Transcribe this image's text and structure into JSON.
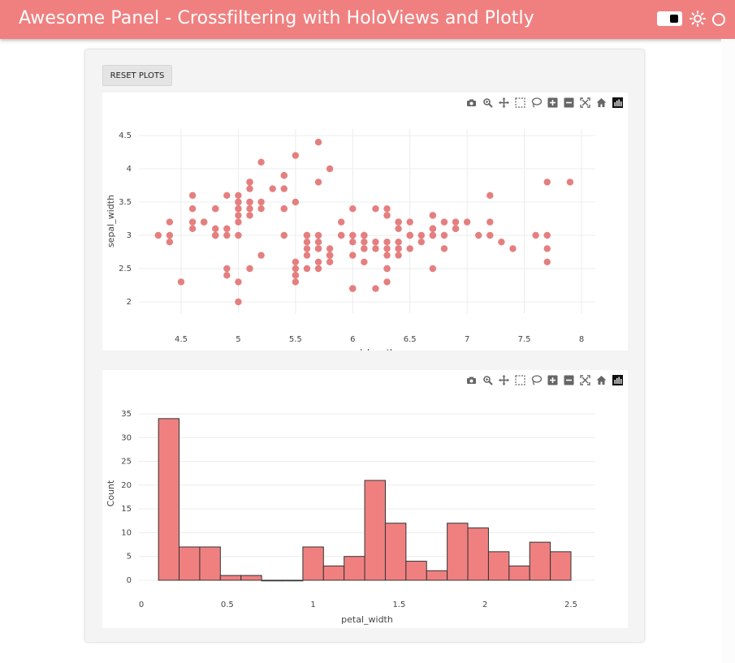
{
  "app": {
    "title": "Awesome Panel  -  Crossfiltering with HoloViews and Plotly",
    "header_color": "#f08080"
  },
  "toolbar": {
    "reset_label": "RESET PLOTS"
  },
  "modebar": [
    "camera-icon",
    "zoom-icon",
    "pan-icon",
    "box-select-icon",
    "lasso-select-icon",
    "zoom-in-icon",
    "zoom-out-icon",
    "autoscale-icon",
    "reset-axes-icon",
    "plotly-logo-icon"
  ],
  "chart_data": [
    {
      "type": "scatter",
      "title": "",
      "xlabel": "sepal_length",
      "ylabel": "sepal_width",
      "xlim": [
        4.2,
        8.1
      ],
      "ylim": [
        1.8,
        4.6
      ],
      "xticks": [
        4.5,
        5,
        5.5,
        6,
        6.5,
        7,
        7.5,
        8
      ],
      "xtick_labels": [
        "4.5",
        "5",
        "5.5",
        "6",
        "6.5",
        "7",
        "7.5",
        "8"
      ],
      "yticks": [
        2,
        2.5,
        3,
        3.5,
        4,
        4.5
      ],
      "ytick_labels": [
        "2",
        "2.5",
        "3",
        "3.5",
        "4",
        "4.5"
      ],
      "color": "#e57f7f",
      "x": [
        5.1,
        4.9,
        4.7,
        4.6,
        5.0,
        5.4,
        4.6,
        5.0,
        4.4,
        4.9,
        5.4,
        4.8,
        4.8,
        4.3,
        5.8,
        5.7,
        5.4,
        5.1,
        5.7,
        5.1,
        5.4,
        5.1,
        4.6,
        5.1,
        4.8,
        5.0,
        5.0,
        5.2,
        5.2,
        4.7,
        4.8,
        5.4,
        5.2,
        5.5,
        4.9,
        5.0,
        5.5,
        4.9,
        4.4,
        5.1,
        5.0,
        4.5,
        4.4,
        5.0,
        5.1,
        4.8,
        5.1,
        4.6,
        5.3,
        5.0,
        7.0,
        6.4,
        6.9,
        5.5,
        6.5,
        5.7,
        6.3,
        4.9,
        6.6,
        5.2,
        5.0,
        5.9,
        6.0,
        6.1,
        5.6,
        6.7,
        5.6,
        5.8,
        6.2,
        5.6,
        5.9,
        6.1,
        6.3,
        6.1,
        6.4,
        6.6,
        6.8,
        6.7,
        6.0,
        5.7,
        5.5,
        5.5,
        5.8,
        6.0,
        5.4,
        6.0,
        6.7,
        6.3,
        5.6,
        5.5,
        5.5,
        6.1,
        5.8,
        5.0,
        5.6,
        5.7,
        5.7,
        6.2,
        5.1,
        5.7,
        6.3,
        5.8,
        7.1,
        6.3,
        6.5,
        7.6,
        4.9,
        7.3,
        6.7,
        7.2,
        6.5,
        6.4,
        6.8,
        5.7,
        5.8,
        6.4,
        6.5,
        7.7,
        7.7,
        6.0,
        6.9,
        5.6,
        7.7,
        6.3,
        6.7,
        7.2,
        6.2,
        6.1,
        6.4,
        7.2,
        7.4,
        7.9,
        6.4,
        6.3,
        6.1,
        7.7,
        6.3,
        6.4,
        6.0,
        6.9,
        6.7,
        6.9,
        5.8,
        6.8,
        6.7,
        6.7,
        6.3,
        6.5,
        6.2,
        5.9
      ],
      "y": [
        3.5,
        3.0,
        3.2,
        3.1,
        3.6,
        3.9,
        3.4,
        3.4,
        2.9,
        3.1,
        3.7,
        3.4,
        3.0,
        3.0,
        4.0,
        4.4,
        3.9,
        3.5,
        3.8,
        3.8,
        3.4,
        3.7,
        3.6,
        3.3,
        3.4,
        3.0,
        3.4,
        3.5,
        3.4,
        3.2,
        3.1,
        3.4,
        4.1,
        4.2,
        3.1,
        3.2,
        3.5,
        3.6,
        3.0,
        3.4,
        3.5,
        2.3,
        3.2,
        3.5,
        3.8,
        3.0,
        3.8,
        3.2,
        3.7,
        3.3,
        3.2,
        3.2,
        3.1,
        2.3,
        2.8,
        2.8,
        3.3,
        2.4,
        2.9,
        2.7,
        2.0,
        3.0,
        2.2,
        2.9,
        2.9,
        3.1,
        3.0,
        2.7,
        2.2,
        2.5,
        3.2,
        2.8,
        2.5,
        2.8,
        2.9,
        3.0,
        2.8,
        3.0,
        2.9,
        2.6,
        2.4,
        2.4,
        2.7,
        2.7,
        3.0,
        3.4,
        3.1,
        2.3,
        3.0,
        2.5,
        2.6,
        3.0,
        2.6,
        2.3,
        2.7,
        3.0,
        2.9,
        2.9,
        2.5,
        2.8,
        3.3,
        2.7,
        3.0,
        2.9,
        3.0,
        3.0,
        2.5,
        2.9,
        2.5,
        3.6,
        3.2,
        2.7,
        3.0,
        2.5,
        2.8,
        3.2,
        3.0,
        3.8,
        2.6,
        2.2,
        3.2,
        2.8,
        2.8,
        2.7,
        3.3,
        3.2,
        2.8,
        3.0,
        2.8,
        3.0,
        2.8,
        3.8,
        2.8,
        2.8,
        2.6,
        3.0,
        3.4,
        3.1,
        3.0,
        3.1,
        3.1,
        3.1,
        2.7,
        3.2,
        3.3,
        3.0,
        2.5,
        3.0,
        3.4,
        3.0
      ]
    },
    {
      "type": "bar",
      "title": "",
      "xlabel": "petal_width",
      "ylabel": "Count",
      "xlim": [
        0,
        2.6
      ],
      "ylim": [
        0,
        36
      ],
      "xticks": [
        0,
        0.5,
        1,
        1.5,
        2,
        2.5
      ],
      "xtick_labels": [
        "0",
        "0.5",
        "1",
        "1.5",
        "2",
        "2.5"
      ],
      "yticks": [
        0,
        5,
        10,
        15,
        20,
        25,
        30,
        35
      ],
      "ytick_labels": [
        "0",
        "5",
        "10",
        "15",
        "20",
        "25",
        "30",
        "35"
      ],
      "color": "#f08080",
      "bin_edges": [
        0.1,
        0.22,
        0.34,
        0.46,
        0.58,
        0.7,
        0.82,
        0.94,
        1.06,
        1.18,
        1.3,
        1.42,
        1.54,
        1.66,
        1.78,
        1.9,
        2.02,
        2.14,
        2.26,
        2.38,
        2.5
      ],
      "values": [
        34,
        7,
        7,
        1,
        1,
        0,
        0,
        7,
        3,
        5,
        21,
        12,
        4,
        2,
        12,
        11,
        6,
        3,
        8,
        6
      ]
    }
  ]
}
